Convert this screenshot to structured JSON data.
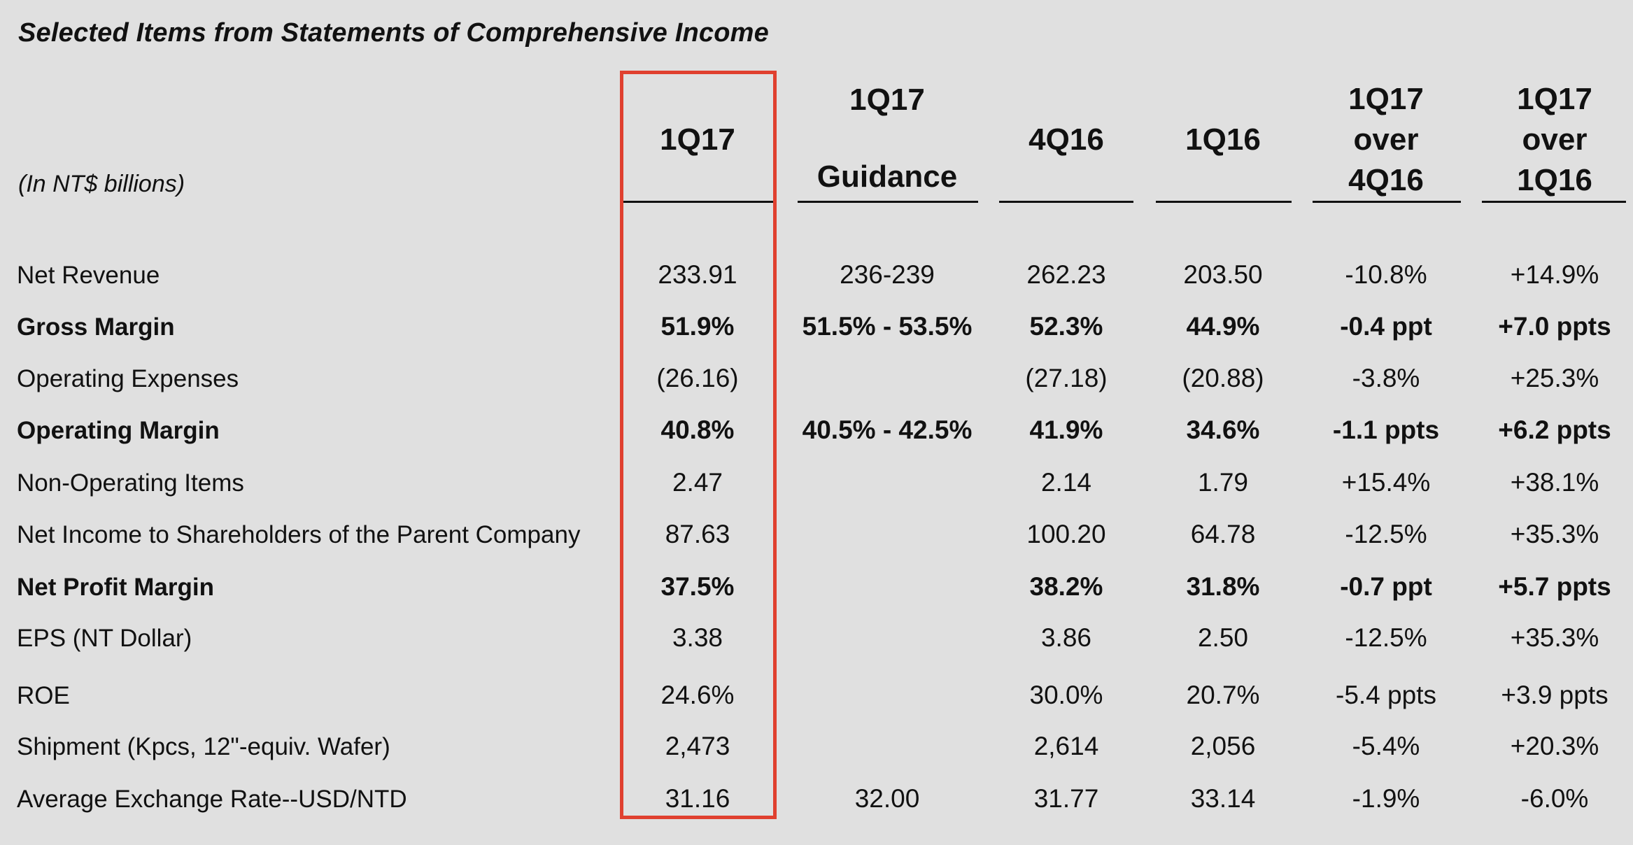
{
  "title": "Selected Items from Statements of Comprehensive Income",
  "unit_note": "(In NT$ billions)",
  "columns": [
    {
      "lines": [
        "1Q17"
      ]
    },
    {
      "lines": [
        "1Q17",
        "Guidance"
      ]
    },
    {
      "lines": [
        "4Q16"
      ]
    },
    {
      "lines": [
        "1Q16"
      ]
    },
    {
      "lines": [
        "1Q17",
        "over",
        "4Q16"
      ]
    },
    {
      "lines": [
        "1Q17",
        "over",
        "1Q16"
      ]
    }
  ],
  "rows": [
    {
      "label": "Net Revenue",
      "bold": false,
      "values": [
        "233.91",
        "236-239",
        "262.23",
        "203.50",
        "-10.8%",
        "+14.9%"
      ]
    },
    {
      "label": "Gross Margin",
      "bold": true,
      "values": [
        "51.9%",
        "51.5% - 53.5%",
        "52.3%",
        "44.9%",
        "-0.4 ppt",
        "+7.0 ppts"
      ]
    },
    {
      "label": "Operating Expenses",
      "bold": false,
      "values": [
        "(26.16)",
        "",
        "(27.18)",
        "(20.88)",
        "-3.8%",
        "+25.3%"
      ]
    },
    {
      "label": "Operating Margin",
      "bold": true,
      "values": [
        "40.8%",
        "40.5% - 42.5%",
        "41.9%",
        "34.6%",
        "-1.1 ppts",
        "+6.2 ppts"
      ]
    },
    {
      "label": "Non-Operating Items",
      "bold": false,
      "values": [
        "2.47",
        "",
        "2.14",
        "1.79",
        "+15.4%",
        "+38.1%"
      ]
    },
    {
      "label": "Net Income to Shareholders of the Parent Company",
      "bold": false,
      "values": [
        "87.63",
        "",
        "100.20",
        "64.78",
        "-12.5%",
        "+35.3%"
      ]
    },
    {
      "label": "Net Profit Margin",
      "bold": true,
      "values": [
        "37.5%",
        "",
        "38.2%",
        "31.8%",
        "-0.7 ppt",
        "+5.7 ppts"
      ]
    },
    {
      "label": "EPS (NT Dollar)",
      "bold": false,
      "values": [
        "3.38",
        "",
        "3.86",
        "2.50",
        "-12.5%",
        "+35.3%"
      ]
    },
    {
      "label": "ROE",
      "bold": false,
      "values": [
        "24.6%",
        "",
        "30.0%",
        "20.7%",
        "-5.4 ppts",
        "+3.9 ppts"
      ]
    },
    {
      "label": "Shipment (Kpcs, 12\"-equiv. Wafer)",
      "bold": false,
      "values": [
        "2,473",
        "",
        "2,614",
        "2,056",
        "-5.4%",
        "+20.3%"
      ]
    },
    {
      "label": "Average Exchange Rate--USD/NTD",
      "bold": false,
      "values": [
        "31.16",
        "32.00",
        "31.77",
        "33.14",
        "-1.9%",
        "-6.0%"
      ]
    }
  ],
  "colors": {
    "background": "#e0e0e0",
    "text": "#111111",
    "highlight_border": "#e0402f"
  }
}
